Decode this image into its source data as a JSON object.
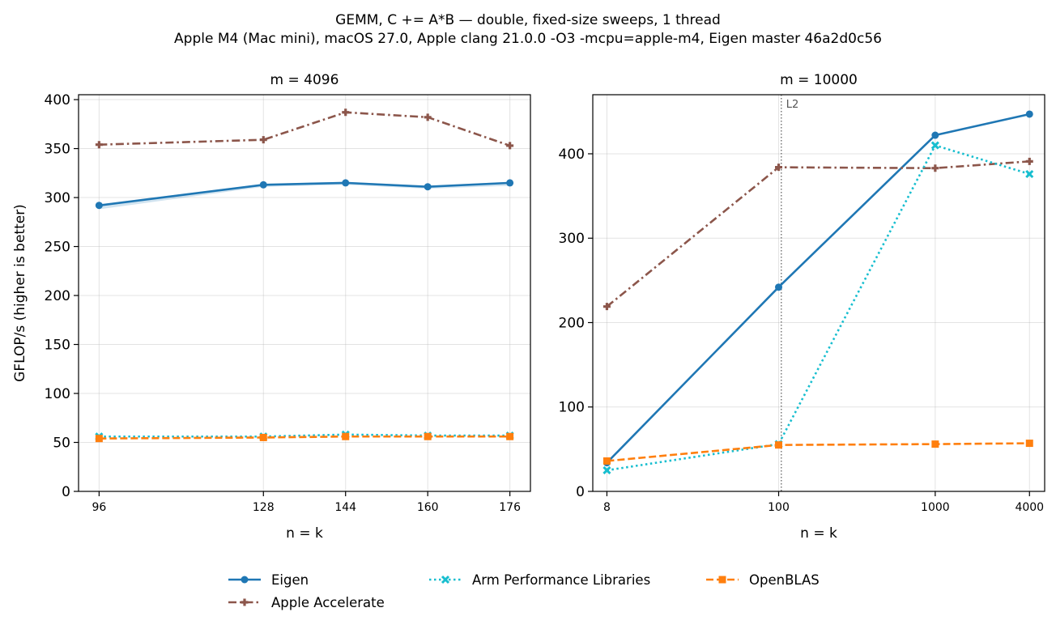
{
  "figure": {
    "title_line1": "GEMM, C += A*B — double, fixed-size sweeps, 1 thread",
    "title_line2": "Apple M4 (Mac mini), macOS 27.0, Apple clang 21.0.0 -O3 -mcpu=apple-m4, Eigen master 46a2d0c56"
  },
  "colors": {
    "eigen": "#1f77b4",
    "apple": "#8c564b",
    "armpl": "#17becf",
    "openblas": "#ff7f0e"
  },
  "legend": {
    "placement": "bottom-center",
    "entries": [
      {
        "key": "eigen",
        "label": "Eigen",
        "marker": "circle",
        "dash": "solid"
      },
      {
        "key": "apple",
        "label": "Apple Accelerate",
        "marker": "plus",
        "dash": "dashdot"
      },
      {
        "key": "armpl",
        "label": "Arm Performance Libraries",
        "marker": "x",
        "dash": "dotted"
      },
      {
        "key": "openblas",
        "label": "OpenBLAS",
        "marker": "square",
        "dash": "dashed"
      }
    ]
  },
  "chart_data": [
    {
      "type": "line",
      "title": "m = 4096",
      "xlabel": "n = k",
      "ylabel": "GFLOP/s (higher is better)",
      "x": [
        96,
        128,
        144,
        160,
        176
      ],
      "x_tick_labels": [
        "96",
        "128",
        "144",
        "160",
        "176"
      ],
      "xlim": [
        92,
        180
      ],
      "ylim": [
        0,
        405
      ],
      "y_ticks": [
        0,
        50,
        100,
        150,
        200,
        250,
        300,
        350,
        400
      ],
      "grid": true,
      "series": [
        {
          "name": "Eigen",
          "key": "eigen",
          "values": [
            292,
            313,
            315,
            311,
            315
          ],
          "band_low": [
            288,
            311,
            313,
            309,
            312
          ],
          "band_high": [
            293,
            314,
            316,
            312,
            316
          ]
        },
        {
          "name": "Apple Accelerate",
          "key": "apple",
          "values": [
            354,
            359,
            387,
            382,
            353
          ]
        },
        {
          "name": "Arm Performance Libraries",
          "key": "armpl",
          "values": [
            56,
            56,
            58,
            57,
            57
          ]
        },
        {
          "name": "OpenBLAS",
          "key": "openblas",
          "values": [
            54,
            55,
            56,
            56,
            56
          ]
        }
      ]
    },
    {
      "type": "line",
      "title": "m = 10000",
      "xlabel": "n = k",
      "ylabel": "",
      "x_scale": "log",
      "x": [
        8,
        100,
        1000,
        4000
      ],
      "x_tick_labels": [
        "8",
        "100",
        "1000",
        "4000"
      ],
      "xlim": [
        6.5,
        5000
      ],
      "ylim": [
        0,
        470
      ],
      "y_ticks": [
        0,
        100,
        200,
        300,
        400
      ],
      "grid": true,
      "vline": {
        "x": 104,
        "label": "L2"
      },
      "series": [
        {
          "name": "Eigen",
          "key": "eigen",
          "values": [
            34,
            242,
            422,
            447
          ]
        },
        {
          "name": "Apple Accelerate",
          "key": "apple",
          "values": [
            219,
            384,
            383,
            391
          ]
        },
        {
          "name": "Arm Performance Libraries",
          "key": "armpl",
          "values": [
            25,
            56,
            410,
            376
          ]
        },
        {
          "name": "OpenBLAS",
          "key": "openblas",
          "values": [
            36,
            55,
            56,
            57
          ]
        }
      ]
    }
  ]
}
